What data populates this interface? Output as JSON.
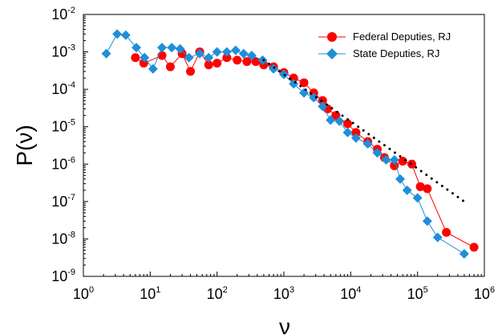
{
  "chart_data": {
    "type": "scatter",
    "title": "",
    "xlabel": "ν",
    "ylabel": "P(ν)",
    "xscale": "log",
    "yscale": "log",
    "xlim": [
      1,
      1000000
    ],
    "ylim": [
      1e-09,
      0.01
    ],
    "x_tick_labels": [
      {
        "base": "10",
        "exp": "0",
        "value": 1
      },
      {
        "base": "10",
        "exp": "1",
        "value": 10
      },
      {
        "base": "10",
        "exp": "2",
        "value": 100
      },
      {
        "base": "10",
        "exp": "3",
        "value": 1000
      },
      {
        "base": "10",
        "exp": "4",
        "value": 10000
      },
      {
        "base": "10",
        "exp": "5",
        "value": 100000
      },
      {
        "base": "10",
        "exp": "6",
        "value": 1000000
      }
    ],
    "y_tick_labels": [
      {
        "base": "10",
        "exp": "-9",
        "value": 1e-09
      },
      {
        "base": "10",
        "exp": "-8",
        "value": 1e-08
      },
      {
        "base": "10",
        "exp": "-7",
        "value": 1e-07
      },
      {
        "base": "10",
        "exp": "-6",
        "value": 1e-06
      },
      {
        "base": "10",
        "exp": "-5",
        "value": 1e-05
      },
      {
        "base": "10",
        "exp": "-4",
        "value": 0.0001
      },
      {
        "base": "10",
        "exp": "-3",
        "value": 0.001
      },
      {
        "base": "10",
        "exp": "-2",
        "value": 0.01
      }
    ],
    "legend": {
      "position": "top-right"
    },
    "grid": false,
    "series": [
      {
        "name": "Federal Deputies, RJ",
        "color": "#ff0000",
        "marker": "circle",
        "points": [
          {
            "x": 6,
            "y": 0.0007
          },
          {
            "x": 8,
            "y": 0.0005
          },
          {
            "x": 15,
            "y": 0.0008
          },
          {
            "x": 20,
            "y": 0.0004
          },
          {
            "x": 30,
            "y": 0.0009
          },
          {
            "x": 40,
            "y": 0.0003
          },
          {
            "x": 55,
            "y": 0.001
          },
          {
            "x": 75,
            "y": 0.00045
          },
          {
            "x": 100,
            "y": 0.0005
          },
          {
            "x": 140,
            "y": 0.0007
          },
          {
            "x": 200,
            "y": 0.0006
          },
          {
            "x": 280,
            "y": 0.00055
          },
          {
            "x": 380,
            "y": 0.00055
          },
          {
            "x": 500,
            "y": 0.00045
          },
          {
            "x": 700,
            "y": 0.0004
          },
          {
            "x": 1000,
            "y": 0.00028
          },
          {
            "x": 1400,
            "y": 0.0002
          },
          {
            "x": 2000,
            "y": 0.00015
          },
          {
            "x": 2800,
            "y": 8e-05
          },
          {
            "x": 3800,
            "y": 5e-05
          },
          {
            "x": 4500,
            "y": 3e-05
          },
          {
            "x": 6000,
            "y": 2e-05
          },
          {
            "x": 9000,
            "y": 1.2e-05
          },
          {
            "x": 12000,
            "y": 7e-06
          },
          {
            "x": 18000,
            "y": 4e-06
          },
          {
            "x": 25000,
            "y": 2.5e-06
          },
          {
            "x": 32000,
            "y": 1.5e-06
          },
          {
            "x": 45000,
            "y": 9e-07
          },
          {
            "x": 60000,
            "y": 1.2e-06
          },
          {
            "x": 82000,
            "y": 1e-06
          },
          {
            "x": 110000,
            "y": 2.5e-07
          },
          {
            "x": 140000,
            "y": 2.2e-07
          },
          {
            "x": 270000,
            "y": 1.5e-08
          },
          {
            "x": 700000,
            "y": 6e-09
          }
        ]
      },
      {
        "name": "State Deputies, RJ",
        "color": "#1f8fd8",
        "marker": "diamond",
        "points": [
          {
            "x": 2.2,
            "y": 0.0009
          },
          {
            "x": 3.2,
            "y": 0.003
          },
          {
            "x": 4.3,
            "y": 0.0028
          },
          {
            "x": 6.2,
            "y": 0.0013
          },
          {
            "x": 8.2,
            "y": 0.0007
          },
          {
            "x": 11,
            "y": 0.00035
          },
          {
            "x": 15,
            "y": 0.0013
          },
          {
            "x": 21,
            "y": 0.0013
          },
          {
            "x": 28,
            "y": 0.0012
          },
          {
            "x": 38,
            "y": 0.0007
          },
          {
            "x": 55,
            "y": 0.0009
          },
          {
            "x": 75,
            "y": 0.0007
          },
          {
            "x": 100,
            "y": 0.001
          },
          {
            "x": 140,
            "y": 0.001
          },
          {
            "x": 190,
            "y": 0.0011
          },
          {
            "x": 250,
            "y": 0.0009
          },
          {
            "x": 330,
            "y": 0.0008
          },
          {
            "x": 480,
            "y": 0.0006
          },
          {
            "x": 700,
            "y": 0.00035
          },
          {
            "x": 1000,
            "y": 0.00025
          },
          {
            "x": 1400,
            "y": 0.00014
          },
          {
            "x": 2000,
            "y": 8e-05
          },
          {
            "x": 2800,
            "y": 6e-05
          },
          {
            "x": 3800,
            "y": 3.5e-05
          },
          {
            "x": 5000,
            "y": 1.5e-05
          },
          {
            "x": 6800,
            "y": 1.4e-05
          },
          {
            "x": 9000,
            "y": 7e-06
          },
          {
            "x": 12000,
            "y": 5e-06
          },
          {
            "x": 18000,
            "y": 3.5e-06
          },
          {
            "x": 25000,
            "y": 2e-06
          },
          {
            "x": 34000,
            "y": 1.3e-06
          },
          {
            "x": 45000,
            "y": 1.3e-06
          },
          {
            "x": 55000,
            "y": 4e-07
          },
          {
            "x": 70000,
            "y": 2e-07
          },
          {
            "x": 100000,
            "y": 1.25e-07
          },
          {
            "x": 140000,
            "y": 3e-08
          },
          {
            "x": 200000,
            "y": 1.1e-08
          },
          {
            "x": 500000,
            "y": 4e-09
          }
        ]
      }
    ],
    "guide_lines": [
      {
        "style": "dotted",
        "color": "#000000",
        "points": [
          {
            "x": 500,
            "y": 0.0006
          },
          {
            "x": 500000,
            "y": 1e-07
          }
        ]
      }
    ]
  }
}
